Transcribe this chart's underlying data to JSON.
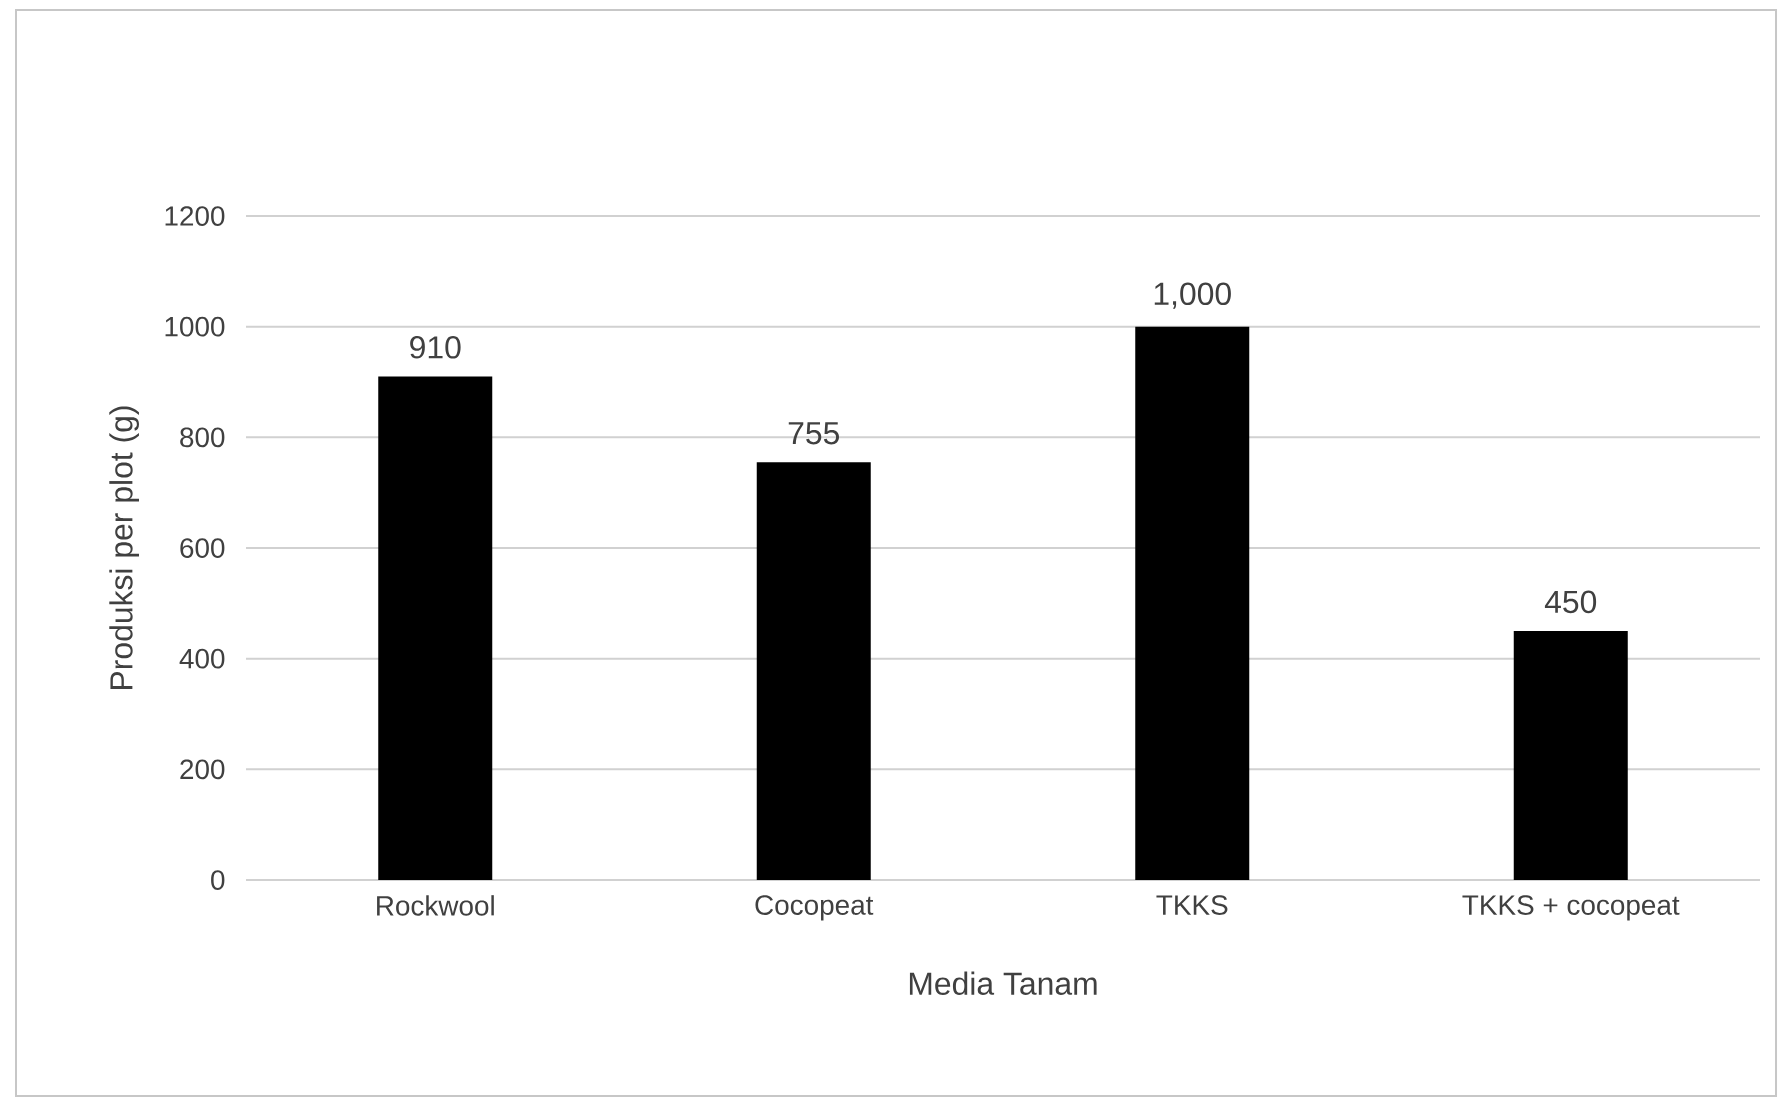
{
  "chart_data": {
    "type": "bar",
    "xlabel": "Media Tanam",
    "ylabel": "Produksi per plot (g)",
    "categories": [
      "Rockwool",
      "Cocopeat",
      "TKKS",
      "TKKS + cocopeat"
    ],
    "values": [
      910,
      755,
      1000,
      450
    ],
    "value_labels": [
      "910",
      "755",
      "1,000",
      "450"
    ],
    "color": "#000000",
    "ylim": [
      0,
      1200
    ],
    "yticks": [
      0,
      200,
      400,
      600,
      800,
      1000,
      1200
    ],
    "grid": "y"
  }
}
